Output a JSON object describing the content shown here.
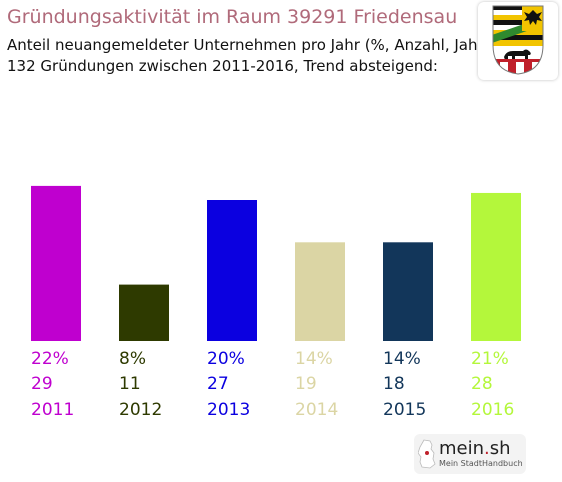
{
  "header": {
    "title": "Gründungsaktivität im Raum 39291 Friedensau",
    "subtitle_line1": "Anteil neuangemeldeter Unternehmen pro Jahr (%, Anzahl, Jahr)",
    "subtitle_line2": "132 Gründungen zwischen 2011-2016, Trend absteigend:"
  },
  "chart_data": {
    "type": "bar",
    "categories": [
      "2011",
      "2012",
      "2013",
      "2014",
      "2015",
      "2016"
    ],
    "values": [
      22,
      8,
      20,
      14,
      14,
      21
    ],
    "counts": [
      29,
      11,
      27,
      19,
      18,
      28
    ],
    "percent_labels": [
      "22%",
      "8%",
      "20%",
      "14%",
      "14%",
      "21%"
    ],
    "colors": [
      "#bf00cf",
      "#2e3a00",
      "#0b00e0",
      "#dbd5a4",
      "#12365a",
      "#b4f73b"
    ],
    "title": "Gründungsaktivität im Raum 39291 Friedensau",
    "xlabel": "",
    "ylabel": "",
    "grid": false,
    "legend": "none"
  },
  "branding": {
    "coat_of_arms_icon": "saxony-anhalt-coat-of-arms-icon",
    "logo_name": "mein",
    "logo_dot": ".",
    "logo_tld": "sh",
    "logo_tagline": "Mein StadtHandbuch"
  }
}
